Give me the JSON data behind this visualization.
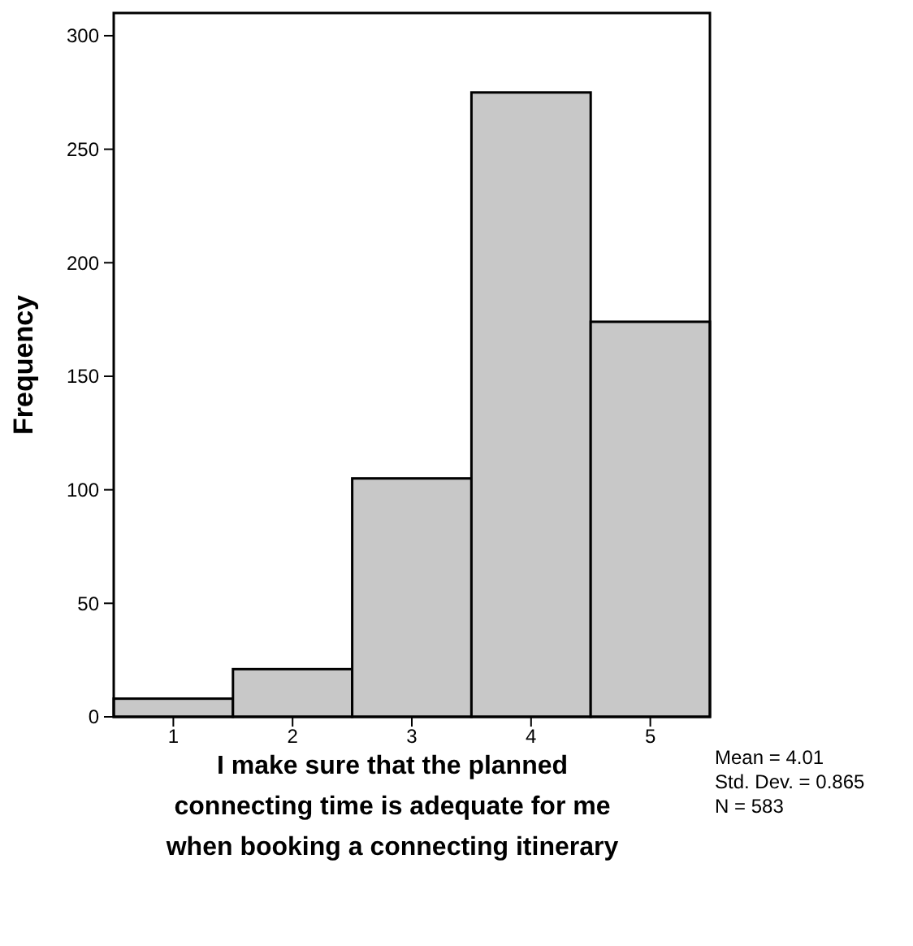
{
  "chart_data": {
    "type": "histogram",
    "xlabel": "I make sure that the planned connecting time is adequate for me when booking a connecting itinerary",
    "ylabel": "Frequency",
    "bins": [
      0.5,
      1.5,
      2.5,
      3.5,
      4.5,
      5.5
    ],
    "values": [
      8,
      21,
      105,
      275,
      174
    ],
    "color": "#c8c8c8",
    "xlim": [
      0.5,
      5.5
    ],
    "xticks": [
      1,
      2,
      3,
      4,
      5
    ],
    "ylim": [
      0,
      310
    ],
    "yticks": [
      0,
      50,
      100,
      150,
      200,
      250,
      300
    ],
    "grid": false,
    "annotations": [
      "Mean = 4.01",
      "Std. Dev. = 0.865",
      "N = 583"
    ]
  }
}
